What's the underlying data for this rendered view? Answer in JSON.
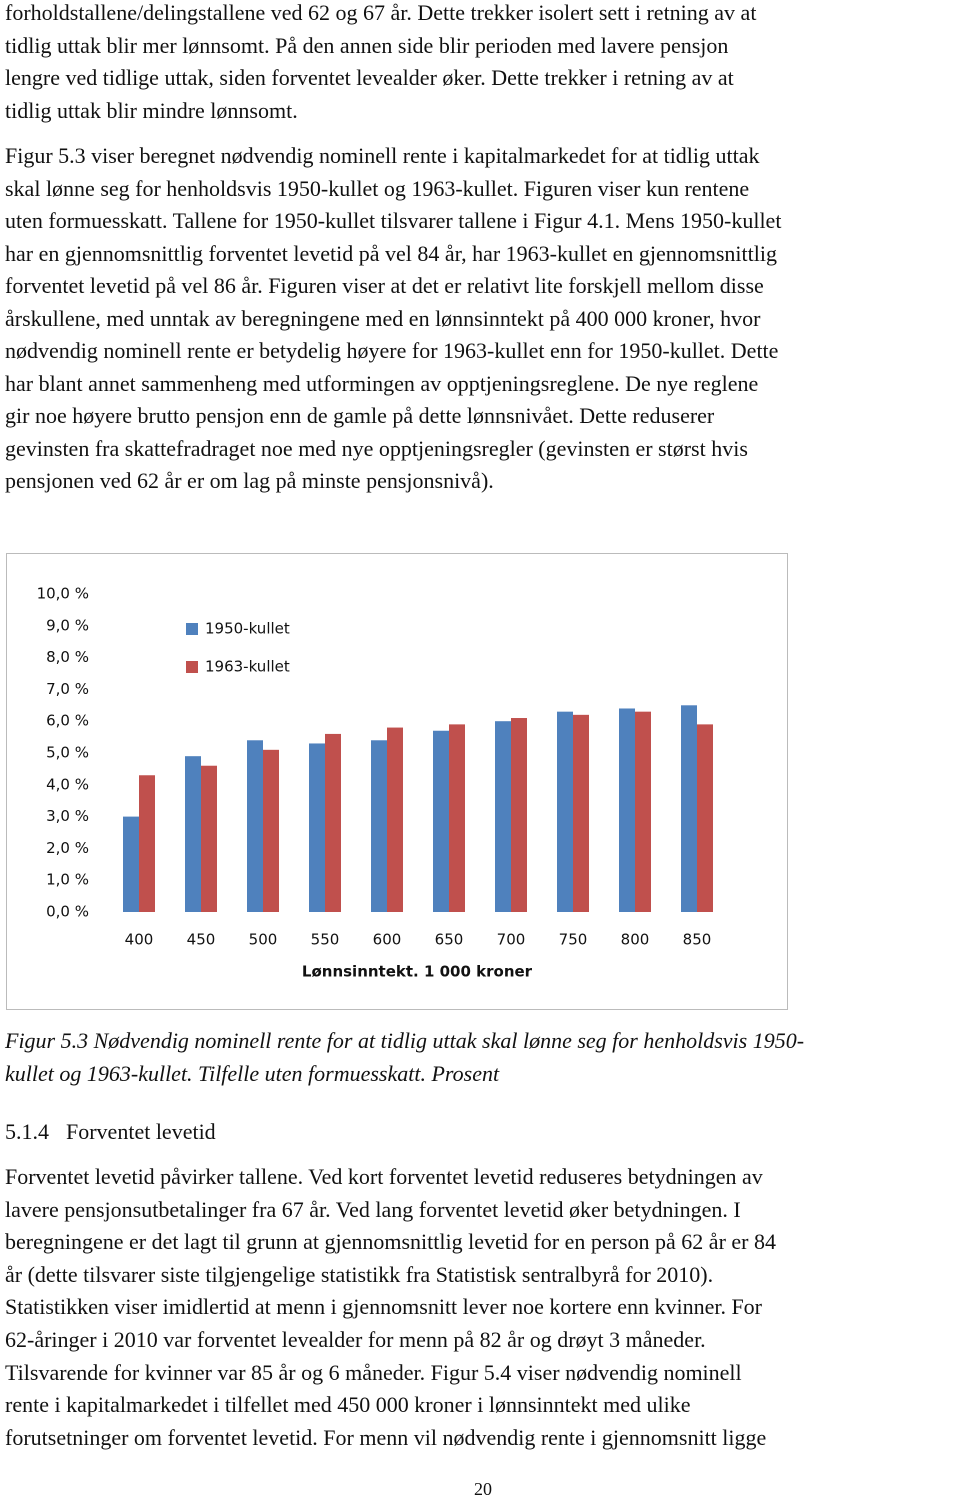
{
  "intro": {
    "lines": [
      "forholdstallene/delingstallene ved 62 og 67 år. Dette trekker isolert sett i retning av at",
      "tidlig uttak blir mer lønnsomt. På den annen side blir perioden med lavere pensjon",
      "lengre ved tidlige uttak, siden forventet levealder øker. Dette trekker i retning av at",
      "tidlig uttak blir mindre lønnsomt."
    ]
  },
  "paragraph": {
    "lines": [
      "Figur 5.3 viser beregnet nødvendig nominell rente i kapitalmarkedet for at tidlig uttak",
      "skal lønne seg for henholdsvis 1950-kullet og 1963-kullet. Figuren viser kun rentene",
      "uten formuesskatt. Tallene for 1950-kullet tilsvarer tallene i Figur 4.1. Mens 1950-kullet",
      "har en gjennomsnittlig forventet levetid på vel 84 år, har 1963-kullet en gjennomsnittlig",
      "forventet levetid på vel 86 år. Figuren viser at det er relativt lite forskjell mellom disse",
      "årskullene, med unntak av beregningene med en lønnsinntekt på 400 000 kroner, hvor",
      "nødvendig nominell rente er betydelig høyere for 1963-kullet enn for 1950-kullet. Dette",
      "har blant annet sammenheng med utformingen av opptjeningsreglene. De nye reglene",
      "gir noe høyere brutto pensjon enn de gamle på dette lønnsnivået. Dette reduserer",
      "gevinsten fra skattefradraget noe med nye opptjeningsregler (gevinsten er størst hvis",
      "pensjonen ved 62 år er om lag på minste pensjonsnivå)."
    ]
  },
  "chart_data": {
    "type": "bar",
    "categories": [
      "400",
      "450",
      "500",
      "550",
      "600",
      "650",
      "700",
      "750",
      "800",
      "850"
    ],
    "series": [
      {
        "name": "1950-kullet",
        "color": "#4f81bd",
        "values": [
          3.0,
          4.9,
          5.4,
          5.3,
          5.4,
          5.7,
          6.0,
          6.3,
          6.4,
          6.5
        ]
      },
      {
        "name": "1963-kullet",
        "color": "#c0504d",
        "values": [
          4.3,
          4.6,
          5.1,
          5.6,
          5.8,
          5.9,
          6.1,
          6.2,
          6.3,
          5.9
        ]
      }
    ],
    "x_label": "Lønnsinntekt. 1 000 kroner",
    "ylim": [
      0,
      10
    ],
    "yticks": [
      {
        "value": 0,
        "label": "0,0 %"
      },
      {
        "value": 1,
        "label": "1,0 %"
      },
      {
        "value": 2,
        "label": "2,0 %"
      },
      {
        "value": 3,
        "label": "3,0 %"
      },
      {
        "value": 4,
        "label": "4,0 %"
      },
      {
        "value": 5,
        "label": "5,0 %"
      },
      {
        "value": 6,
        "label": "6,0 %"
      },
      {
        "value": 7,
        "label": "7,0 %"
      },
      {
        "value": 8,
        "label": "8,0 %"
      },
      {
        "value": 9,
        "label": "9,0 %"
      },
      {
        "value": 10,
        "label": "10,0 %"
      }
    ],
    "grid": false
  },
  "caption": {
    "lines": [
      "Figur 5.3 Nødvendig nominell rente for at tidlig uttak skal lønne seg for henholdsvis 1950-",
      "kullet og 1963-kullet. Tilfelle uten formuesskatt. Prosent"
    ]
  },
  "section": {
    "number": "5.1.4",
    "title": "Forventet levetid"
  },
  "body": {
    "lines": [
      "Forventet levetid påvirker tallene. Ved kort forventet levetid reduseres betydningen av",
      "lavere pensjonsutbetalinger fra 67 år. Ved lang forventet levetid øker betydningen. I",
      "beregningene er det lagt til grunn at gjennomsnittlig levetid for en person på 62 år er 84",
      "år (dette tilsvarer siste tilgjengelige statistikk fra Statistisk sentralbyrå for 2010).",
      "Statistikken viser imidlertid at menn i gjennomsnitt lever noe kortere enn kvinner. For",
      "62-åringer i 2010 var forventet levealder for menn på 82 år og drøyt 3 måneder.",
      "Tilsvarende for kvinner var 85 år og 6 måneder. Figur 5.4 viser nødvendig nominell",
      "rente i kapitalmarkedet i tilfellet med 450 000 kroner i lønnsinntekt med ulike",
      "forutsetninger om forventet levetid. For menn vil nødvendig rente i gjennomsnitt ligge"
    ]
  },
  "page_number": "20"
}
